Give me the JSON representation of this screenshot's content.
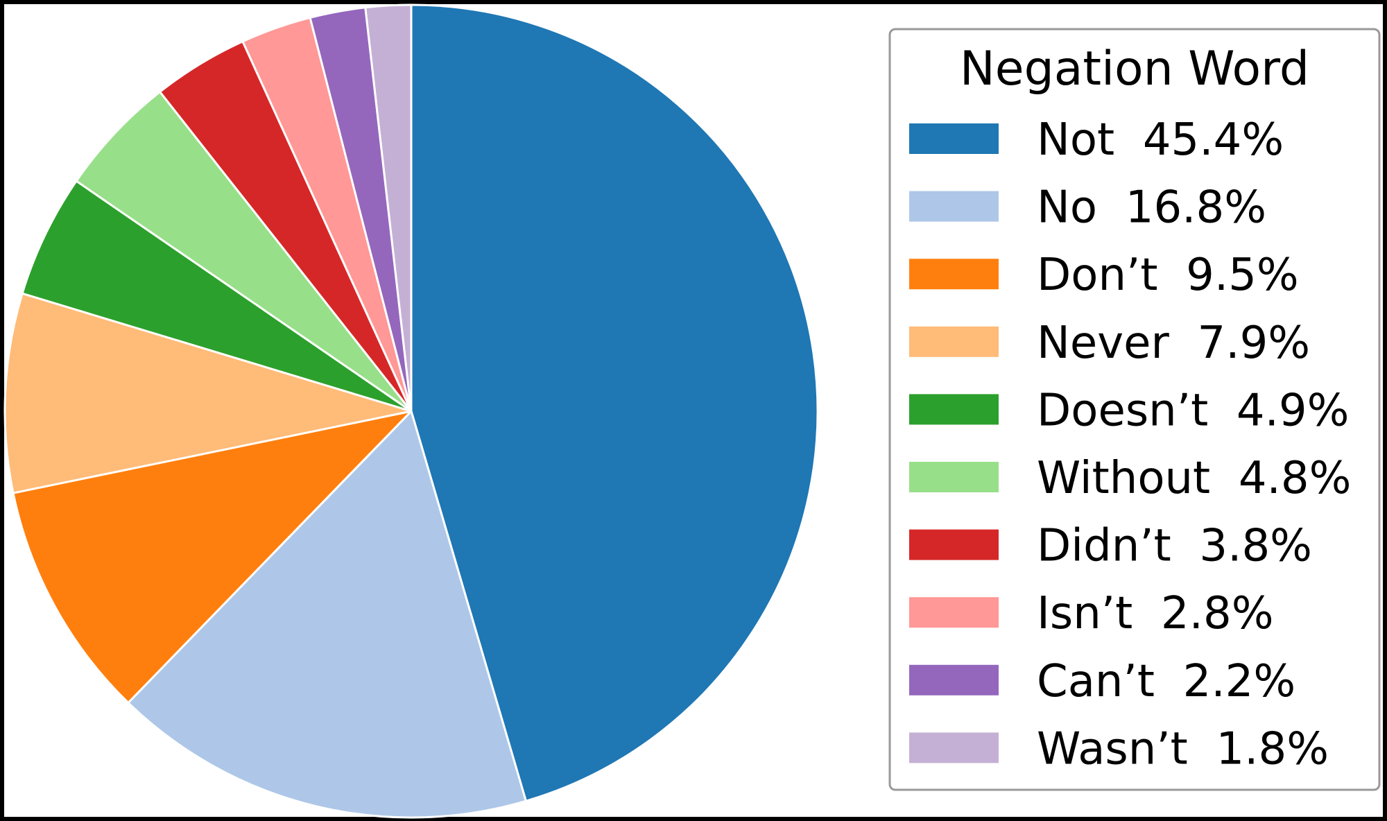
{
  "chart_data": {
    "type": "pie",
    "legend_title": "Negation Word",
    "legend_placement": "right",
    "start_angle_deg": 90,
    "direction": "clockwise",
    "slices": [
      {
        "label": "Not",
        "value": 45.4,
        "display": "Not  45.4%",
        "color": "#1f77b4"
      },
      {
        "label": "No",
        "value": 16.8,
        "display": "No  16.8%",
        "color": "#aec7e8"
      },
      {
        "label": "Don’t",
        "value": 9.5,
        "display": "Don’t  9.5%",
        "color": "#ff7f0e"
      },
      {
        "label": "Never",
        "value": 7.9,
        "display": "Never  7.9%",
        "color": "#ffbb78"
      },
      {
        "label": "Doesn’t",
        "value": 4.9,
        "display": "Doesn’t  4.9%",
        "color": "#2ca02c"
      },
      {
        "label": "Without",
        "value": 4.8,
        "display": "Without  4.8%",
        "color": "#98df8a"
      },
      {
        "label": "Didn’t",
        "value": 3.8,
        "display": "Didn’t  3.8%",
        "color": "#d62728"
      },
      {
        "label": "Isn’t",
        "value": 2.8,
        "display": "Isn’t  2.8%",
        "color": "#ff9896"
      },
      {
        "label": "Can’t",
        "value": 2.2,
        "display": "Can’t  2.2%",
        "color": "#9467bd"
      },
      {
        "label": "Wasn’t",
        "value": 1.8,
        "display": "Wasn’t  1.8%",
        "color": "#c5b0d5"
      }
    ]
  }
}
